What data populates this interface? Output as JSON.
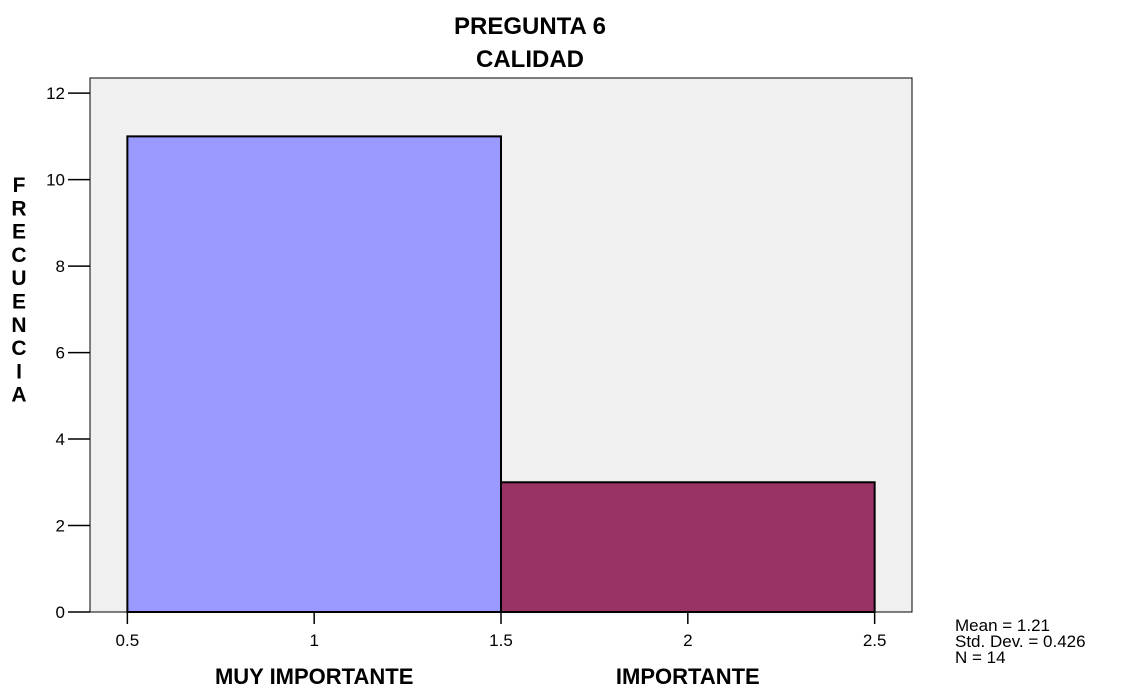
{
  "chart_data": {
    "type": "bar",
    "title_lines": [
      "PREGUNTA 6",
      "CALIDAD"
    ],
    "ylabel": "FRECUENCIA",
    "bins": [
      {
        "x0": 0.5,
        "x1": 1.5,
        "value": 11,
        "label": "MUY IMPORTANTE",
        "color": "#9999ff"
      },
      {
        "x0": 1.5,
        "x1": 2.5,
        "value": 3,
        "label": "IMPORTANTE",
        "color": "#993366"
      }
    ],
    "xlim": [
      0.4,
      2.6
    ],
    "ylim": [
      0,
      12.35
    ],
    "xticks": [
      0.5,
      1,
      1.5,
      2,
      2.5
    ],
    "xtick_labels": [
      "0.5",
      "1",
      "1.5",
      "2",
      "2.5"
    ],
    "yticks": [
      0,
      2,
      4,
      6,
      8,
      10,
      12
    ],
    "ytick_labels": [
      "0",
      "2",
      "4",
      "6",
      "8",
      "10",
      "12"
    ],
    "stats": [
      "Mean = 1.21",
      "Std. Dev. = 0.426",
      "N = 14"
    ],
    "background_color": "#f0f0f0",
    "grid": false,
    "legend": "none"
  }
}
